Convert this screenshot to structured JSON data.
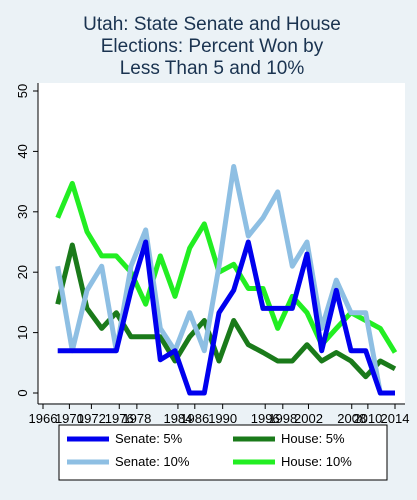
{
  "chart_data": {
    "type": "line",
    "title_lines": [
      "Utah: State Senate and House",
      "Elections: Percent Won by",
      "Less Than 5 and 10%"
    ],
    "xlabel": "",
    "ylabel": "",
    "xlim": [
      1966,
      2014
    ],
    "ylim": [
      0,
      50
    ],
    "x_ticks": [
      "1966",
      "1970",
      "1972",
      "1976",
      "1978",
      "1984",
      "1986",
      "1990",
      "1996",
      "1998",
      "2002",
      "2008",
      "2010",
      "2014"
    ],
    "x_tick_values": [
      1966,
      1969.6,
      1972.6,
      1976.4,
      1978.8,
      1984.4,
      1986.7,
      1990.5,
      1996.3,
      1998.7,
      2002.2,
      2008.1,
      2010.3,
      2014.0
    ],
    "y_ticks": [
      0,
      10,
      20,
      30,
      40,
      50
    ],
    "grid": false,
    "legend_position": "bottom",
    "series": [
      {
        "name": "Senate: 5%",
        "color": "#0000ee",
        "x": [
          1968,
          1970,
          1972,
          1974,
          1976,
          1978,
          1980,
          1982,
          1984,
          1986,
          1988,
          1990,
          1992,
          1994,
          1996,
          1998,
          2000,
          2002,
          2004,
          2006,
          2008,
          2010,
          2012,
          2014
        ],
        "y": [
          7,
          7,
          7,
          7,
          7,
          17,
          25,
          5.5,
          7,
          0,
          0,
          13.3,
          17,
          25,
          14,
          14,
          14,
          23,
          7,
          17,
          7,
          7,
          0,
          0
        ]
      },
      {
        "name": "House: 5%",
        "color": "#1a7a1a",
        "x": [
          1968,
          1970,
          1972,
          1974,
          1976,
          1978,
          1980,
          1982,
          1984,
          1986,
          1988,
          1990,
          1992,
          1994,
          1996,
          1998,
          2000,
          2002,
          2004,
          2006,
          2008,
          2010,
          2012,
          2014
        ],
        "y": [
          14.7,
          24.5,
          14,
          10.7,
          13.3,
          9.3,
          9.3,
          9.3,
          5.3,
          9.3,
          12,
          5.3,
          12,
          8,
          6.7,
          5.3,
          5.3,
          8,
          5.3,
          6.7,
          5.3,
          2.7,
          5.3,
          4
        ]
      },
      {
        "name": "Senate: 10%",
        "color": "#8ebfe3",
        "x": [
          1968,
          1970,
          1972,
          1974,
          1976,
          1978,
          1980,
          1982,
          1984,
          1986,
          1988,
          1990,
          1992,
          1994,
          1996,
          1998,
          2000,
          2002,
          2004,
          2006,
          2008,
          2010,
          2012,
          2014
        ],
        "y": [
          21,
          7,
          17,
          21,
          7,
          21,
          27,
          10.7,
          7,
          13.3,
          7,
          21,
          37.5,
          26,
          29,
          33.3,
          21,
          25,
          10.7,
          18.7,
          13.3,
          13.3,
          0,
          0
        ]
      },
      {
        "name": "House: 10%",
        "color": "#22ee22",
        "x": [
          1968,
          1970,
          1972,
          1974,
          1976,
          1978,
          1980,
          1982,
          1984,
          1986,
          1988,
          1990,
          1992,
          1994,
          1996,
          1998,
          2000,
          2002,
          2004,
          2006,
          2008,
          2010,
          2012,
          2014
        ],
        "y": [
          29,
          34.7,
          26.7,
          22.7,
          22.7,
          20,
          14.7,
          22.7,
          16,
          24,
          28,
          20,
          21.3,
          17.3,
          17.3,
          10.7,
          16,
          13.3,
          8,
          10.7,
          13.3,
          12,
          10.7,
          6.7
        ]
      }
    ]
  }
}
